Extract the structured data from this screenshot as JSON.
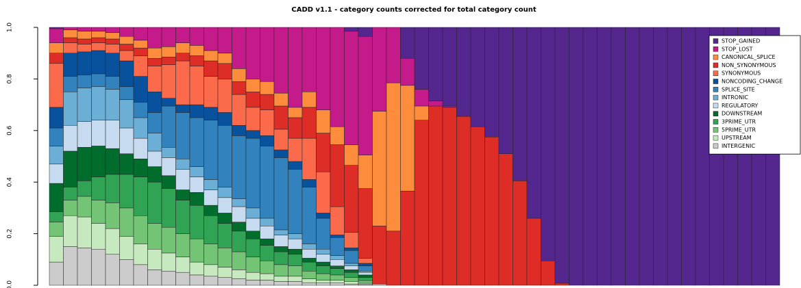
{
  "chart_data": {
    "type": "stacked_bar",
    "title": "CADD v1.1 - category counts corrected for total category count",
    "categories": [
      null,
      null,
      null,
      null,
      null,
      null,
      null,
      null,
      null,
      null,
      null,
      null,
      null,
      null,
      null,
      null,
      null,
      null,
      null,
      null,
      null,
      null,
      null,
      null,
      null,
      null,
      null,
      null,
      null,
      null,
      null,
      null,
      null,
      null,
      null,
      null,
      null,
      null,
      null,
      null,
      null,
      null,
      null,
      null,
      null,
      null,
      null,
      null,
      null,
      null,
      null,
      null
    ],
    "ylim": [
      0,
      1
    ],
    "yticks": [
      {
        "value": 0,
        "label": "0.0"
      },
      0.2,
      0.4,
      0.6,
      0.8,
      {
        "value": 1,
        "label": "1.0"
      }
    ],
    "legend": "top-right",
    "series": [
      {
        "name": "STOP_GAINED",
        "color": "#54278f",
        "values": [
          0.005,
          0,
          0,
          0,
          0,
          0,
          0,
          0,
          0,
          0,
          0,
          0,
          0,
          0,
          0,
          0,
          0,
          0,
          0,
          0,
          0,
          0.015,
          0.035,
          0,
          0,
          0.12,
          0.24,
          0.285,
          0.305,
          0.345,
          0.385,
          0.425,
          0.49,
          0.595,
          0.74,
          0.905,
          0.992,
          1,
          1,
          1,
          1,
          1,
          1,
          1,
          1,
          1,
          1,
          1,
          1,
          1,
          1,
          1
        ]
      },
      {
        "name": "STOP_LOST",
        "color": "#c51b8a",
        "values": [
          0.055,
          0.01,
          0.015,
          0.015,
          0.02,
          0.035,
          0.05,
          0.08,
          0.075,
          0.06,
          0.07,
          0.09,
          0.1,
          0.16,
          0.2,
          0.21,
          0.255,
          0.31,
          0.25,
          0.32,
          0.385,
          0.44,
          0.46,
          0.325,
          0.215,
          0.105,
          0.065,
          0.02,
          0.005,
          0,
          0,
          0,
          0,
          0,
          0,
          0,
          0,
          0,
          0,
          0,
          0,
          0,
          0,
          0,
          0,
          0,
          0,
          0,
          0,
          0,
          0,
          0
        ]
      },
      {
        "name": "CANONICAL_SPLICE",
        "color": "#fd8d3c",
        "values": [
          0.04,
          0.03,
          0.03,
          0.025,
          0.025,
          0.03,
          0.03,
          0.04,
          0.04,
          0.04,
          0.04,
          0.04,
          0.04,
          0.05,
          0.05,
          0.05,
          0.05,
          0.04,
          0.06,
          0.09,
          0.07,
          0.08,
          0.13,
          0.445,
          0.575,
          0.41,
          0.055,
          0,
          0,
          0,
          0,
          0,
          0,
          0,
          0,
          0,
          0,
          0,
          0,
          0,
          0,
          0,
          0,
          0,
          0,
          0,
          0,
          0,
          0,
          0,
          0,
          0
        ]
      },
      {
        "name": "NON_SYNONYMOUS",
        "color": "#de2d26",
        "values": [
          0.04,
          0.02,
          0.02,
          0.02,
          0.02,
          0.025,
          0.03,
          0.03,
          0.03,
          0.03,
          0.04,
          0.06,
          0.06,
          0.05,
          0.06,
          0.06,
          0.09,
          0.08,
          0.12,
          0.15,
          0.24,
          0.26,
          0.27,
          0.225,
          0.21,
          0.365,
          0.64,
          0.695,
          0.69,
          0.655,
          0.615,
          0.575,
          0.51,
          0.405,
          0.26,
          0.095,
          0.008,
          0,
          0,
          0,
          0,
          0,
          0,
          0,
          0,
          0,
          0,
          0,
          0,
          0,
          0,
          0
        ]
      },
      {
        "name": "SYNONYMOUS",
        "color": "#fb6a4a",
        "values": [
          0.17,
          0.04,
          0.03,
          0.03,
          0.035,
          0.04,
          0.08,
          0.1,
          0.13,
          0.17,
          0.15,
          0.12,
          0.13,
          0.12,
          0.09,
          0.1,
          0.08,
          0.09,
          0.16,
          0.16,
          0.11,
          0.06,
          0.02,
          0,
          0,
          0,
          0,
          0,
          0,
          0,
          0,
          0,
          0,
          0,
          0,
          0,
          0,
          0,
          0,
          0,
          0,
          0,
          0,
          0,
          0,
          0,
          0,
          0,
          0,
          0,
          0,
          0
        ]
      },
      {
        "name": "NONCODING_CHANGE",
        "color": "#08519c",
        "values": [
          0.08,
          0.09,
          0.09,
          0.09,
          0.09,
          0.1,
          0.1,
          0.08,
          0.03,
          0.03,
          0.05,
          0.05,
          0.05,
          0.04,
          0.03,
          0.04,
          0.03,
          0.03,
          0.03,
          0.02,
          0.01,
          0.01,
          0.01,
          0,
          0,
          0,
          0,
          0,
          0,
          0,
          0,
          0,
          0,
          0,
          0,
          0,
          0,
          0,
          0,
          0,
          0,
          0,
          0,
          0,
          0,
          0,
          0,
          0,
          0,
          0,
          0,
          0
        ]
      },
      {
        "name": "SPLICE_SITE",
        "color": "#3182bd",
        "values": [
          0.07,
          0.06,
          0.05,
          0.05,
          0.05,
          0.05,
          0.06,
          0.08,
          0.16,
          0.18,
          0.19,
          0.23,
          0.24,
          0.245,
          0.27,
          0.28,
          0.28,
          0.25,
          0.22,
          0.12,
          0.07,
          0.05,
          0.02,
          0,
          0,
          0,
          0,
          0,
          0,
          0,
          0,
          0,
          0,
          0,
          0,
          0,
          0,
          0,
          0,
          0,
          0,
          0,
          0,
          0,
          0,
          0,
          0,
          0,
          0,
          0,
          0,
          0
        ]
      },
      {
        "name": "INTRONIC",
        "color": "#6baed6",
        "values": [
          0.07,
          0.13,
          0.13,
          0.13,
          0.12,
          0.11,
          0.08,
          0.07,
          0.04,
          0.04,
          0.04,
          0.04,
          0.04,
          0.03,
          0.04,
          0.03,
          0.02,
          0.02,
          0.02,
          0.02,
          0.015,
          0.01,
          0.005,
          0,
          0,
          0,
          0,
          0,
          0,
          0,
          0,
          0,
          0,
          0,
          0,
          0,
          0,
          0,
          0,
          0,
          0,
          0,
          0,
          0,
          0,
          0,
          0,
          0,
          0,
          0,
          0,
          0
        ]
      },
      {
        "name": "REGULATORY",
        "color": "#c6dbef",
        "values": [
          0.075,
          0.1,
          0.1,
          0.1,
          0.11,
          0.1,
          0.08,
          0.06,
          0.07,
          0.08,
          0.06,
          0.06,
          0.06,
          0.06,
          0.05,
          0.05,
          0.045,
          0.04,
          0.035,
          0.03,
          0.025,
          0.015,
          0.01,
          0,
          0,
          0,
          0,
          0,
          0,
          0,
          0,
          0,
          0,
          0,
          0,
          0,
          0,
          0,
          0,
          0,
          0,
          0,
          0,
          0,
          0,
          0,
          0,
          0,
          0,
          0,
          0,
          0
        ]
      },
      {
        "name": "DOWNSTREAM",
        "color": "#006d2c",
        "values": [
          0.11,
          0.14,
          0.13,
          0.12,
          0.1,
          0.08,
          0.07,
          0.06,
          0.05,
          0.04,
          0.05,
          0.04,
          0.04,
          0.035,
          0.03,
          0.025,
          0.02,
          0.02,
          0.015,
          0.015,
          0.01,
          0.01,
          0.01,
          0,
          0,
          0,
          0,
          0,
          0,
          0,
          0,
          0,
          0,
          0,
          0,
          0,
          0,
          0,
          0,
          0,
          0,
          0,
          0,
          0,
          0,
          0,
          0,
          0,
          0,
          0,
          0,
          0
        ]
      },
      {
        "name": "3PRIME_UTR",
        "color": "#31a354",
        "values": [
          0.04,
          0.05,
          0.06,
          0.09,
          0.11,
          0.13,
          0.15,
          0.16,
          0.15,
          0.13,
          0.13,
          0.11,
          0.095,
          0.08,
          0.07,
          0.06,
          0.05,
          0.045,
          0.035,
          0.03,
          0.025,
          0.02,
          0.012,
          0,
          0,
          0,
          0,
          0,
          0,
          0,
          0,
          0,
          0,
          0,
          0,
          0,
          0,
          0,
          0,
          0,
          0,
          0,
          0,
          0,
          0,
          0,
          0,
          0,
          0,
          0,
          0,
          0
        ]
      },
      {
        "name": "5PRIME_UTR",
        "color": "#74c476",
        "values": [
          0.055,
          0.06,
          0.08,
          0.09,
          0.1,
          0.11,
          0.11,
          0.1,
          0.1,
          0.09,
          0.09,
          0.08,
          0.075,
          0.07,
          0.06,
          0.05,
          0.045,
          0.04,
          0.03,
          0.025,
          0.02,
          0.015,
          0.01,
          0,
          0,
          0,
          0,
          0,
          0,
          0,
          0,
          0,
          0,
          0,
          0,
          0,
          0,
          0,
          0,
          0,
          0,
          0,
          0,
          0,
          0,
          0,
          0,
          0,
          0,
          0,
          0,
          0
        ]
      },
      {
        "name": "UPSTREAM",
        "color": "#c7e9c0",
        "values": [
          0.1,
          0.12,
          0.12,
          0.1,
          0.1,
          0.09,
          0.08,
          0.08,
          0.07,
          0.06,
          0.05,
          0.045,
          0.04,
          0.035,
          0.03,
          0.025,
          0.02,
          0.02,
          0.015,
          0.01,
          0.01,
          0.01,
          0.005,
          0,
          0,
          0,
          0,
          0,
          0,
          0,
          0,
          0,
          0,
          0,
          0,
          0,
          0,
          0,
          0,
          0,
          0,
          0,
          0,
          0,
          0,
          0,
          0,
          0,
          0,
          0,
          0,
          0
        ]
      },
      {
        "name": "INTERGENIC",
        "color": "#cccccc",
        "values": [
          0.09,
          0.15,
          0.145,
          0.14,
          0.12,
          0.1,
          0.08,
          0.06,
          0.055,
          0.05,
          0.04,
          0.035,
          0.03,
          0.025,
          0.02,
          0.02,
          0.015,
          0.015,
          0.01,
          0.01,
          0.01,
          0.005,
          0.003,
          0.005,
          0,
          0,
          0,
          0,
          0,
          0,
          0,
          0,
          0,
          0,
          0,
          0,
          0,
          0,
          0,
          0,
          0,
          0,
          0,
          0,
          0,
          0,
          0,
          0,
          0,
          0,
          0,
          0
        ]
      }
    ]
  }
}
